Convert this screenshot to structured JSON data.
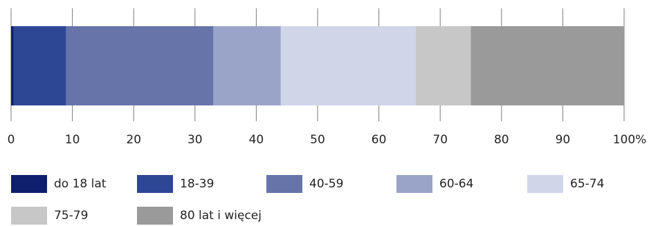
{
  "chart_data": {
    "type": "bar",
    "orientation": "horizontal-stacked-100",
    "series": [
      {
        "name": "do 18 lat",
        "values": [
          0.4
        ],
        "color": "#0f1f6e"
      },
      {
        "name": "18-39",
        "values": [
          8.6
        ],
        "color": "#2e4794"
      },
      {
        "name": "40-59",
        "values": [
          24.0
        ],
        "color": "#6674aa"
      },
      {
        "name": "60-64",
        "values": [
          11.0
        ],
        "color": "#9aa4c9"
      },
      {
        "name": "65-74",
        "values": [
          22.0
        ],
        "color": "#d0d5e8"
      },
      {
        "name": "75-79",
        "values": [
          9.0
        ],
        "color": "#c7c7c7"
      },
      {
        "name": "80 lat i więcej",
        "values": [
          25.0
        ],
        "color": "#9a9a9a"
      }
    ],
    "xlim": [
      0,
      100
    ],
    "x_ticks": [
      "0",
      "10",
      "20",
      "30",
      "40",
      "50",
      "60",
      "70",
      "80",
      "90",
      "100%"
    ],
    "grid": true,
    "legend_position": "bottom"
  }
}
